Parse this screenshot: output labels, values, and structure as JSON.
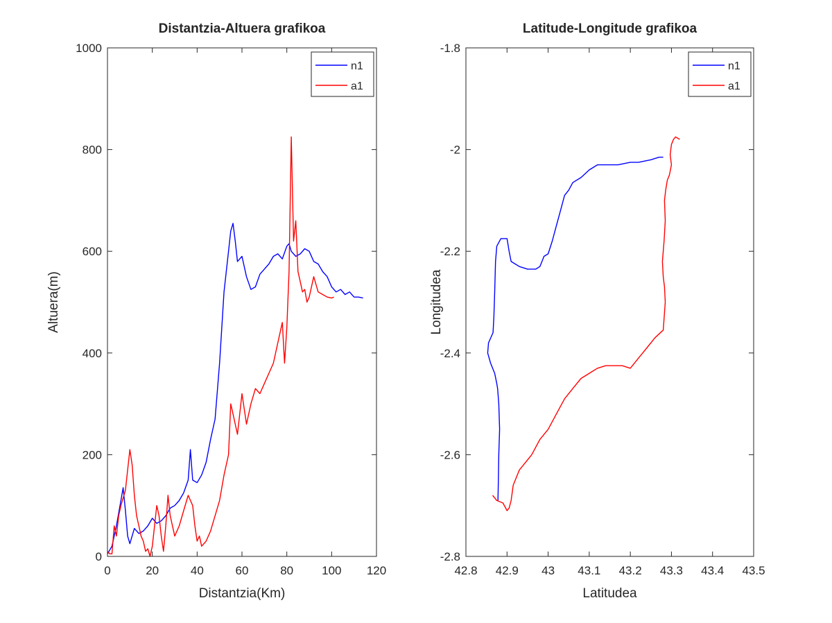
{
  "chart_data": [
    {
      "type": "line",
      "title": "Distantzia-Altuera grafikoa",
      "xlabel": "Distantzia(Km)",
      "ylabel": "Altuera(m)",
      "xlim": [
        0,
        120
      ],
      "ylim": [
        0,
        1000
      ],
      "x_ticks": [
        "0",
        "20",
        "40",
        "60",
        "80",
        "100",
        "120"
      ],
      "y_ticks": [
        "0",
        "200",
        "400",
        "600",
        "800",
        "1000"
      ],
      "grid": false,
      "legend": "top-right",
      "series": [
        {
          "name": "n1",
          "color": "#0000ff",
          "x": [
            0,
            2,
            4,
            6,
            7,
            8,
            9,
            10,
            12,
            14,
            16,
            18,
            20,
            22,
            24,
            26,
            28,
            30,
            32,
            34,
            36,
            37,
            38,
            40,
            42,
            44,
            46,
            48,
            50,
            52,
            54,
            55,
            56,
            57,
            58,
            60,
            62,
            64,
            66,
            68,
            70,
            72,
            74,
            76,
            78,
            80,
            81,
            82,
            84,
            86,
            88,
            90,
            92,
            94,
            96,
            98,
            100,
            102,
            104,
            106,
            108,
            110,
            112,
            114
          ],
          "y": [
            5,
            20,
            60,
            110,
            135,
            90,
            40,
            25,
            55,
            45,
            50,
            60,
            75,
            65,
            70,
            80,
            95,
            100,
            110,
            125,
            150,
            210,
            150,
            145,
            160,
            185,
            230,
            270,
            380,
            520,
            600,
            640,
            655,
            620,
            580,
            590,
            550,
            525,
            530,
            555,
            565,
            575,
            590,
            595,
            585,
            610,
            615,
            600,
            590,
            595,
            605,
            600,
            580,
            575,
            560,
            550,
            530,
            520,
            525,
            515,
            520,
            510,
            510,
            508
          ]
        },
        {
          "name": "a1",
          "color": "#ff0000",
          "x": [
            0,
            1,
            2,
            3,
            4,
            5,
            6,
            8,
            9,
            10,
            11,
            12,
            13,
            14,
            15,
            16,
            17,
            18,
            19,
            20,
            21,
            22,
            23,
            24,
            25,
            26,
            27,
            28,
            30,
            32,
            34,
            36,
            38,
            39,
            40,
            41,
            42,
            44,
            46,
            48,
            50,
            52,
            54,
            55,
            56,
            58,
            60,
            62,
            64,
            66,
            68,
            70,
            72,
            74,
            76,
            78,
            79,
            80,
            81,
            82,
            83,
            84,
            85,
            86,
            87,
            88,
            89,
            90,
            92,
            94,
            96,
            98,
            100,
            101
          ],
          "y": [
            10,
            5,
            5,
            60,
            40,
            80,
            100,
            130,
            170,
            210,
            180,
            120,
            80,
            60,
            40,
            30,
            10,
            15,
            0,
            20,
            60,
            100,
            80,
            40,
            10,
            60,
            120,
            80,
            40,
            60,
            90,
            120,
            100,
            60,
            30,
            40,
            20,
            30,
            50,
            80,
            110,
            160,
            200,
            300,
            280,
            240,
            320,
            260,
            300,
            330,
            320,
            340,
            360,
            380,
            420,
            460,
            380,
            450,
            560,
            825,
            620,
            660,
            560,
            540,
            520,
            525,
            500,
            510,
            550,
            520,
            515,
            510,
            508,
            510
          ]
        }
      ]
    },
    {
      "type": "line",
      "title": "Latitude-Longitude grafikoa",
      "xlabel": "Latitudea",
      "ylabel": "Longitudea",
      "xlim": [
        42.8,
        43.5
      ],
      "ylim": [
        -2.8,
        -1.8
      ],
      "x_ticks": [
        "42.8",
        "42.9",
        "43",
        "43.1",
        "43.2",
        "43.3",
        "43.4",
        "43.5"
      ],
      "y_ticks": [
        "-2.8",
        "-2.6",
        "-2.4",
        "-2.2",
        "-2",
        "-1.8"
      ],
      "grid": false,
      "legend": "top-right",
      "series": [
        {
          "name": "n1",
          "color": "#0000ff",
          "x": [
            42.878,
            42.879,
            42.88,
            42.882,
            42.88,
            42.877,
            42.875,
            42.87,
            42.86,
            42.853,
            42.855,
            42.866,
            42.868,
            42.87,
            42.872,
            42.875,
            42.885,
            42.9,
            42.905,
            42.91,
            42.92,
            42.93,
            42.95,
            42.97,
            42.98,
            42.985,
            42.99,
            43.0,
            43.01,
            43.02,
            43.03,
            43.04,
            43.05,
            43.06,
            43.08,
            43.1,
            43.12,
            43.14,
            43.17,
            43.2,
            43.22,
            43.25,
            43.27,
            43.28
          ],
          "y": [
            -2.69,
            -2.65,
            -2.6,
            -2.55,
            -2.5,
            -2.47,
            -2.46,
            -2.44,
            -2.42,
            -2.4,
            -2.38,
            -2.36,
            -2.33,
            -2.28,
            -2.22,
            -2.19,
            -2.175,
            -2.175,
            -2.2,
            -2.22,
            -2.225,
            -2.23,
            -2.235,
            -2.235,
            -2.23,
            -2.22,
            -2.21,
            -2.205,
            -2.18,
            -2.15,
            -2.12,
            -2.09,
            -2.08,
            -2.065,
            -2.055,
            -2.04,
            -2.03,
            -2.03,
            -2.03,
            -2.025,
            -2.025,
            -2.02,
            -2.015,
            -2.015
          ]
        },
        {
          "name": "a1",
          "color": "#ff0000",
          "x": [
            42.865,
            42.875,
            42.89,
            42.9,
            42.905,
            42.91,
            42.915,
            42.93,
            42.96,
            42.98,
            43.0,
            43.02,
            43.04,
            43.06,
            43.08,
            43.1,
            43.12,
            43.14,
            43.16,
            43.18,
            43.2,
            43.22,
            43.24,
            43.26,
            43.28,
            43.285,
            43.283,
            43.28,
            43.278,
            43.282,
            43.285,
            43.283,
            43.286,
            43.29,
            43.295,
            43.3,
            43.297,
            43.3,
            43.305,
            43.31,
            43.32
          ],
          "y": [
            -2.68,
            -2.69,
            -2.695,
            -2.71,
            -2.705,
            -2.69,
            -2.66,
            -2.63,
            -2.6,
            -2.57,
            -2.55,
            -2.52,
            -2.49,
            -2.47,
            -2.45,
            -2.44,
            -2.43,
            -2.425,
            -2.425,
            -2.425,
            -2.43,
            -2.41,
            -2.39,
            -2.37,
            -2.355,
            -2.3,
            -2.27,
            -2.25,
            -2.22,
            -2.18,
            -2.14,
            -2.1,
            -2.08,
            -2.06,
            -2.05,
            -2.03,
            -2.01,
            -1.99,
            -1.98,
            -1.975,
            -1.98
          ]
        }
      ]
    }
  ]
}
